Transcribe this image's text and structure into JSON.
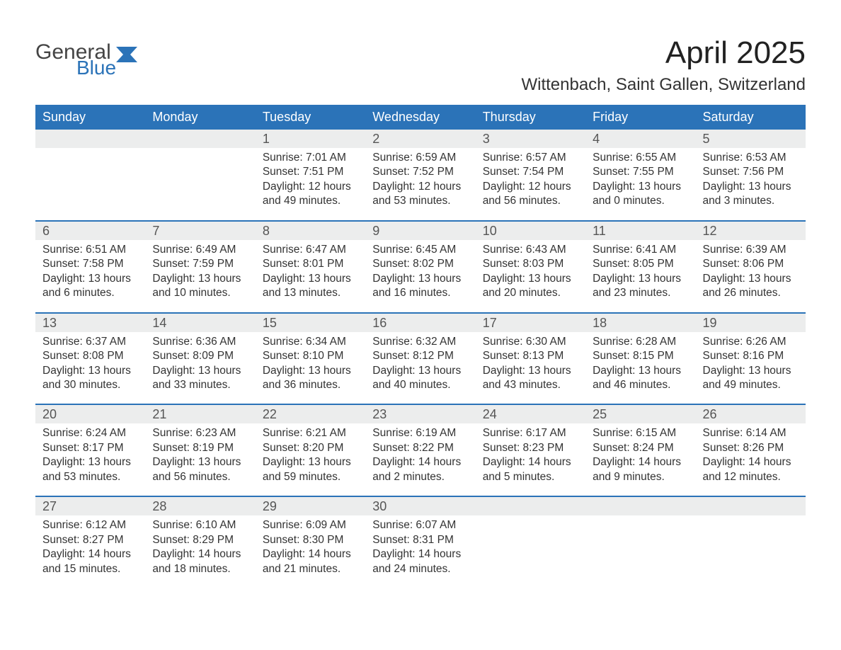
{
  "brand": {
    "general": "General",
    "blue": "Blue",
    "accent": "#2b73b8"
  },
  "title": "April 2025",
  "location": "Wittenbach, Saint Gallen, Switzerland",
  "weekdays": [
    "Sunday",
    "Monday",
    "Tuesday",
    "Wednesday",
    "Thursday",
    "Friday",
    "Saturday"
  ],
  "colors": {
    "header_bg": "#2b73b8",
    "header_text": "#ffffff",
    "daynum_bg": "#eceded",
    "body_text": "#333333",
    "week_border": "#2b73b8",
    "background": "#ffffff"
  },
  "typography": {
    "title_fontsize": 44,
    "location_fontsize": 24,
    "weekday_fontsize": 18,
    "daynum_fontsize": 18,
    "details_fontsize": 15.5
  },
  "weeks": [
    {
      "days": [
        {
          "num": "",
          "sunrise": "",
          "sunset": "",
          "daylight": ""
        },
        {
          "num": "",
          "sunrise": "",
          "sunset": "",
          "daylight": ""
        },
        {
          "num": "1",
          "sunrise": "Sunrise: 7:01 AM",
          "sunset": "Sunset: 7:51 PM",
          "daylight": "Daylight: 12 hours and 49 minutes."
        },
        {
          "num": "2",
          "sunrise": "Sunrise: 6:59 AM",
          "sunset": "Sunset: 7:52 PM",
          "daylight": "Daylight: 12 hours and 53 minutes."
        },
        {
          "num": "3",
          "sunrise": "Sunrise: 6:57 AM",
          "sunset": "Sunset: 7:54 PM",
          "daylight": "Daylight: 12 hours and 56 minutes."
        },
        {
          "num": "4",
          "sunrise": "Sunrise: 6:55 AM",
          "sunset": "Sunset: 7:55 PM",
          "daylight": "Daylight: 13 hours and 0 minutes."
        },
        {
          "num": "5",
          "sunrise": "Sunrise: 6:53 AM",
          "sunset": "Sunset: 7:56 PM",
          "daylight": "Daylight: 13 hours and 3 minutes."
        }
      ]
    },
    {
      "days": [
        {
          "num": "6",
          "sunrise": "Sunrise: 6:51 AM",
          "sunset": "Sunset: 7:58 PM",
          "daylight": "Daylight: 13 hours and 6 minutes."
        },
        {
          "num": "7",
          "sunrise": "Sunrise: 6:49 AM",
          "sunset": "Sunset: 7:59 PM",
          "daylight": "Daylight: 13 hours and 10 minutes."
        },
        {
          "num": "8",
          "sunrise": "Sunrise: 6:47 AM",
          "sunset": "Sunset: 8:01 PM",
          "daylight": "Daylight: 13 hours and 13 minutes."
        },
        {
          "num": "9",
          "sunrise": "Sunrise: 6:45 AM",
          "sunset": "Sunset: 8:02 PM",
          "daylight": "Daylight: 13 hours and 16 minutes."
        },
        {
          "num": "10",
          "sunrise": "Sunrise: 6:43 AM",
          "sunset": "Sunset: 8:03 PM",
          "daylight": "Daylight: 13 hours and 20 minutes."
        },
        {
          "num": "11",
          "sunrise": "Sunrise: 6:41 AM",
          "sunset": "Sunset: 8:05 PM",
          "daylight": "Daylight: 13 hours and 23 minutes."
        },
        {
          "num": "12",
          "sunrise": "Sunrise: 6:39 AM",
          "sunset": "Sunset: 8:06 PM",
          "daylight": "Daylight: 13 hours and 26 minutes."
        }
      ]
    },
    {
      "days": [
        {
          "num": "13",
          "sunrise": "Sunrise: 6:37 AM",
          "sunset": "Sunset: 8:08 PM",
          "daylight": "Daylight: 13 hours and 30 minutes."
        },
        {
          "num": "14",
          "sunrise": "Sunrise: 6:36 AM",
          "sunset": "Sunset: 8:09 PM",
          "daylight": "Daylight: 13 hours and 33 minutes."
        },
        {
          "num": "15",
          "sunrise": "Sunrise: 6:34 AM",
          "sunset": "Sunset: 8:10 PM",
          "daylight": "Daylight: 13 hours and 36 minutes."
        },
        {
          "num": "16",
          "sunrise": "Sunrise: 6:32 AM",
          "sunset": "Sunset: 8:12 PM",
          "daylight": "Daylight: 13 hours and 40 minutes."
        },
        {
          "num": "17",
          "sunrise": "Sunrise: 6:30 AM",
          "sunset": "Sunset: 8:13 PM",
          "daylight": "Daylight: 13 hours and 43 minutes."
        },
        {
          "num": "18",
          "sunrise": "Sunrise: 6:28 AM",
          "sunset": "Sunset: 8:15 PM",
          "daylight": "Daylight: 13 hours and 46 minutes."
        },
        {
          "num": "19",
          "sunrise": "Sunrise: 6:26 AM",
          "sunset": "Sunset: 8:16 PM",
          "daylight": "Daylight: 13 hours and 49 minutes."
        }
      ]
    },
    {
      "days": [
        {
          "num": "20",
          "sunrise": "Sunrise: 6:24 AM",
          "sunset": "Sunset: 8:17 PM",
          "daylight": "Daylight: 13 hours and 53 minutes."
        },
        {
          "num": "21",
          "sunrise": "Sunrise: 6:23 AM",
          "sunset": "Sunset: 8:19 PM",
          "daylight": "Daylight: 13 hours and 56 minutes."
        },
        {
          "num": "22",
          "sunrise": "Sunrise: 6:21 AM",
          "sunset": "Sunset: 8:20 PM",
          "daylight": "Daylight: 13 hours and 59 minutes."
        },
        {
          "num": "23",
          "sunrise": "Sunrise: 6:19 AM",
          "sunset": "Sunset: 8:22 PM",
          "daylight": "Daylight: 14 hours and 2 minutes."
        },
        {
          "num": "24",
          "sunrise": "Sunrise: 6:17 AM",
          "sunset": "Sunset: 8:23 PM",
          "daylight": "Daylight: 14 hours and 5 minutes."
        },
        {
          "num": "25",
          "sunrise": "Sunrise: 6:15 AM",
          "sunset": "Sunset: 8:24 PM",
          "daylight": "Daylight: 14 hours and 9 minutes."
        },
        {
          "num": "26",
          "sunrise": "Sunrise: 6:14 AM",
          "sunset": "Sunset: 8:26 PM",
          "daylight": "Daylight: 14 hours and 12 minutes."
        }
      ]
    },
    {
      "days": [
        {
          "num": "27",
          "sunrise": "Sunrise: 6:12 AM",
          "sunset": "Sunset: 8:27 PM",
          "daylight": "Daylight: 14 hours and 15 minutes."
        },
        {
          "num": "28",
          "sunrise": "Sunrise: 6:10 AM",
          "sunset": "Sunset: 8:29 PM",
          "daylight": "Daylight: 14 hours and 18 minutes."
        },
        {
          "num": "29",
          "sunrise": "Sunrise: 6:09 AM",
          "sunset": "Sunset: 8:30 PM",
          "daylight": "Daylight: 14 hours and 21 minutes."
        },
        {
          "num": "30",
          "sunrise": "Sunrise: 6:07 AM",
          "sunset": "Sunset: 8:31 PM",
          "daylight": "Daylight: 14 hours and 24 minutes."
        },
        {
          "num": "",
          "sunrise": "",
          "sunset": "",
          "daylight": ""
        },
        {
          "num": "",
          "sunrise": "",
          "sunset": "",
          "daylight": ""
        },
        {
          "num": "",
          "sunrise": "",
          "sunset": "",
          "daylight": ""
        }
      ]
    }
  ]
}
